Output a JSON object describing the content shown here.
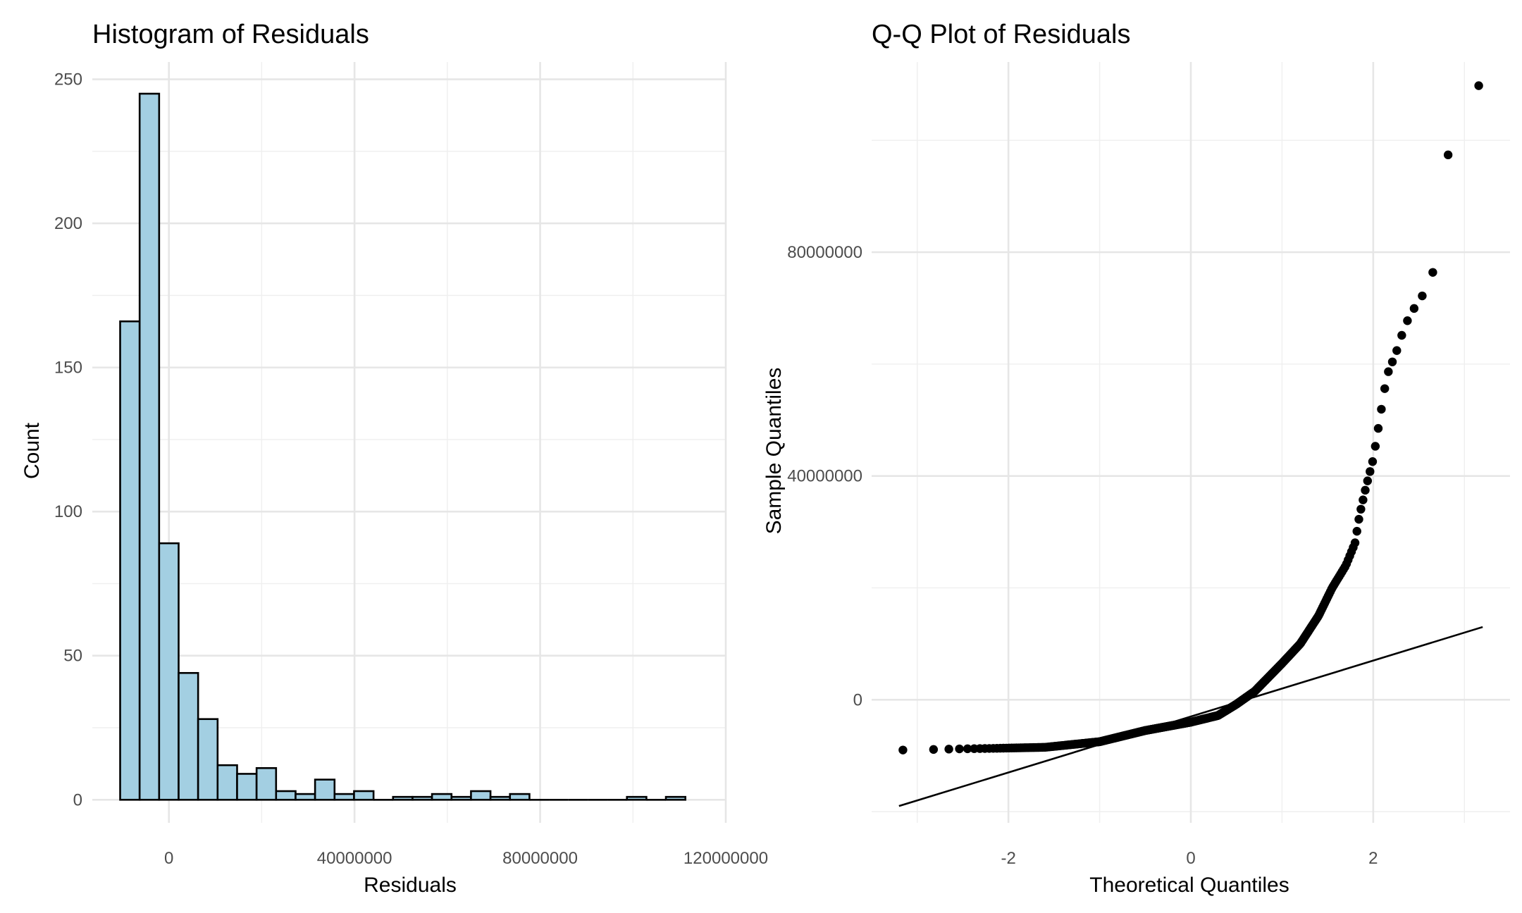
{
  "chart_data": [
    {
      "type": "histogram",
      "title": "Histogram of Residuals",
      "xlabel": "Residuals",
      "ylabel": "Count",
      "xlim": [
        -16500000,
        120000000
      ],
      "ylim": [
        -8,
        256
      ],
      "x_ticks": [
        0,
        40000000,
        80000000,
        120000000
      ],
      "x_tick_labels": [
        "0",
        "40000000",
        "80000000",
        "120000000"
      ],
      "y_ticks": [
        0,
        50,
        100,
        150,
        200,
        250
      ],
      "y_tick_labels": [
        "0",
        "50",
        "100",
        "150",
        "200",
        "250"
      ],
      "grid": true,
      "bar_color": "#A3CFE2",
      "bin_start": -10500000,
      "bin_width": 4200000,
      "bin_counts": [
        166,
        245,
        89,
        44,
        28,
        12,
        9,
        11,
        3,
        2,
        7,
        2,
        3,
        0,
        1,
        1,
        2,
        1,
        3,
        1,
        2,
        0,
        0,
        0,
        0,
        0,
        1,
        0,
        1
      ]
    },
    {
      "type": "scatter",
      "title": "Q-Q Plot of Residuals",
      "xlabel": "Theoretical Quantiles",
      "ylabel": "Sample Quantiles",
      "xlim": [
        -3.5,
        3.5
      ],
      "ylim": [
        -22000000,
        114000000
      ],
      "x_ticks": [
        -2,
        0,
        2
      ],
      "x_tick_labels": [
        "-2",
        "0",
        "2"
      ],
      "y_ticks": [
        0,
        40000000,
        80000000
      ],
      "y_tick_labels": [
        "0",
        "40000000",
        "80000000"
      ],
      "grid": true,
      "n_points": 627,
      "reference_line": {
        "x": [
          -3.2,
          3.2
        ],
        "y": [
          -19000000,
          13000000
        ]
      },
      "quantile_profile": {
        "theoretical": [
          -3.2,
          -2.85,
          -2.6,
          -2.2,
          -1.6,
          -1.0,
          -0.5,
          0.0,
          0.3,
          0.5,
          0.7,
          0.85,
          1.0,
          1.2,
          1.4,
          1.55,
          1.7,
          1.8,
          1.85,
          1.92,
          2.0,
          2.05,
          2.1,
          2.15,
          2.25,
          2.35,
          2.45,
          2.55,
          2.65,
          2.85,
          3.2
        ],
        "sample": [
          -9000000,
          -8900000,
          -8800000,
          -8700000,
          -8500000,
          -7500000,
          -5500000,
          -4000000,
          -2800000,
          -800000,
          1500000,
          4000000,
          6500000,
          10000000,
          15000000,
          20000000,
          24000000,
          28000000,
          33000000,
          38000000,
          43000000,
          48000000,
          53000000,
          58000000,
          62000000,
          67000000,
          70000000,
          72500000,
          76000000,
          101000000,
          111000000
        ]
      }
    }
  ]
}
